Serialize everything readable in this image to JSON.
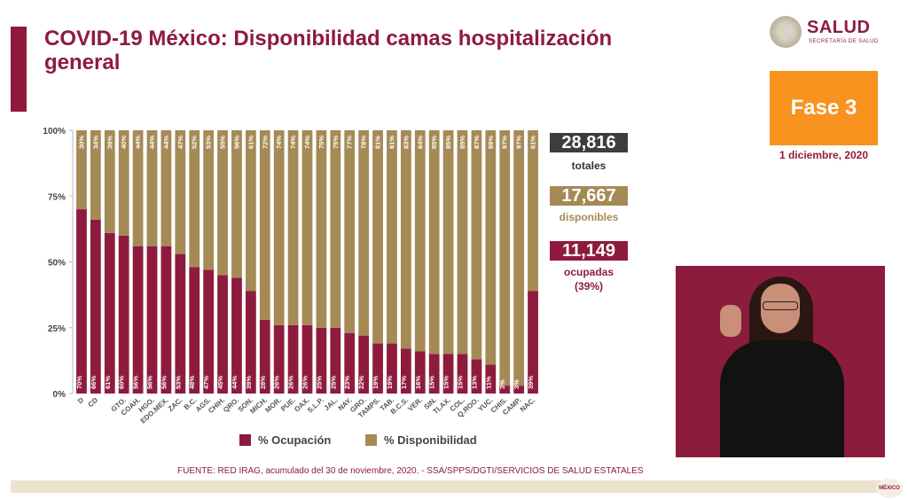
{
  "header": {
    "title": "COVID-19 México: Disponibilidad camas hospitalización general",
    "logo_text": "SALUD",
    "logo_sub": "SECRETARÍA DE SALUD"
  },
  "phase": {
    "label": "Fase 3",
    "date": "1 diciembre, 2020"
  },
  "stats": {
    "total_value": "28,816",
    "total_label": "totales",
    "available_value": "17,667",
    "available_label": "disponibles",
    "occupied_value": "11,149",
    "occupied_label": "ocupadas",
    "occupied_pct": "(39%)"
  },
  "legend": {
    "occupied": "% Ocupación",
    "available": "% Disponibilidad"
  },
  "source": "FUENTE: RED IRAG, acumulado del 30 de noviembre, 2020. -  SSA/SPPS/DGTI/SERVICIOS DE SALUD ESTATALES",
  "footer_badge": "MÉXICO",
  "colors": {
    "occupied": "#8e1b3d",
    "available": "#a58a56",
    "accent": "#8e1b3d",
    "phase": "#f7931e"
  },
  "chart_data": {
    "type": "bar",
    "stacked": true,
    "categories": [
      "D",
      "CD",
      "QRO*",
      "GTO.",
      "COAH.",
      "HGO.",
      "EDO.MEX.",
      "ZAC.",
      "B.C.",
      "AGS.",
      "CHIH.",
      "QRO.",
      "SON.",
      "MICH.",
      "MOR.",
      "PUE.",
      "OAX.",
      "S.L.P.",
      "JAL.",
      "NAY.",
      "GRO.",
      "TAMPS.",
      "TAB.",
      "B.C.S.",
      "VER.",
      "SIN.",
      "TLAX.",
      "COL.",
      "Q.ROO.",
      "YUC.",
      "CHIS.",
      "CAMP.",
      "NAC."
    ],
    "category_labels": [
      "D",
      "CD",
      "",
      "GTO.",
      "COAH.",
      "HGO.",
      "EDO.MEX.",
      "ZAC.",
      "B.C.",
      "AGS.",
      "CHIH.",
      "QRO.",
      "SON.",
      "MICH.",
      "MOR.",
      "PUE.",
      "OAX.",
      "S.L.P.",
      "JAL.",
      "NAY.",
      "GRO.",
      "TAMPS.",
      "TAB.",
      "B.C.S.",
      "VER.",
      "SIN.",
      "TLAX.",
      "COL.",
      "Q.ROO.",
      "YUC.",
      "CHIS.",
      "CAMP.",
      "NAC."
    ],
    "series": [
      {
        "name": "% Ocupación",
        "values": [
          70,
          66,
          61,
          60,
          56,
          56,
          56,
          53,
          48,
          47,
          45,
          44,
          39,
          28,
          26,
          26,
          26,
          25,
          25,
          23,
          22,
          19,
          19,
          17,
          16,
          15,
          15,
          15,
          13,
          11,
          3,
          3,
          39
        ]
      },
      {
        "name": "% Disponibilidad",
        "values": [
          30,
          34,
          39,
          40,
          44,
          44,
          44,
          47,
          52,
          53,
          55,
          56,
          61,
          72,
          74,
          74,
          74,
          75,
          75,
          77,
          78,
          81,
          81,
          83,
          84,
          85,
          85,
          85,
          87,
          89,
          97,
          97,
          61
        ]
      }
    ],
    "y_ticks": [
      "0%",
      "25%",
      "50%",
      "75%",
      "100%"
    ],
    "ylim": [
      0,
      100
    ],
    "legend_position": "bottom"
  }
}
